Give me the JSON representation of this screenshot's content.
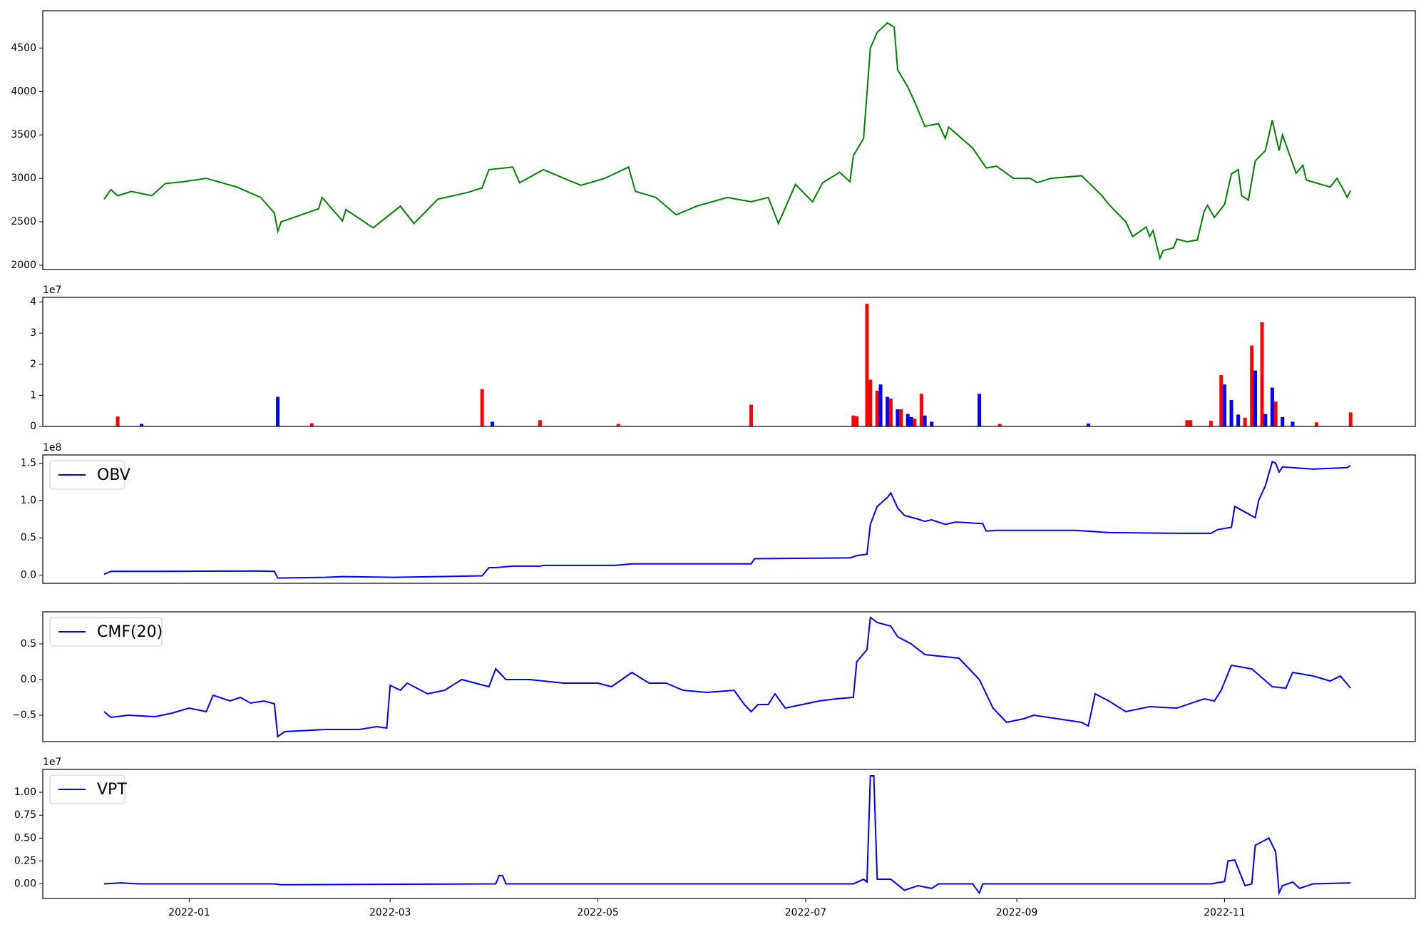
{
  "chart_data": [
    {
      "type": "line",
      "x": [
        -25,
        -23,
        -21,
        -17,
        -11,
        -7,
        -2,
        5,
        14,
        21,
        25,
        26,
        27,
        38,
        39,
        45,
        46,
        54,
        62,
        66,
        73,
        82,
        86,
        88,
        95,
        97,
        104,
        110,
        115,
        122,
        129,
        131,
        137,
        143,
        149,
        158,
        165,
        170,
        173,
        178,
        183,
        186,
        191,
        194,
        195,
        198,
        200,
        202,
        205,
        207,
        208,
        211,
        213,
        216,
        220,
        222,
        223,
        230,
        234,
        237,
        242,
        247,
        249,
        253,
        262,
        268,
        270,
        275,
        277,
        281,
        282,
        283,
        285,
        286,
        289,
        290,
        293,
        296,
        298,
        299,
        301,
        304,
        306,
        308,
        309,
        311,
        313,
        316,
        318,
        320,
        321,
        325,
        327,
        328,
        335,
        337,
        339,
        340,
        341
      ],
      "series": [
        {
          "color": "#008000",
          "values": [
            2760,
            2870,
            2800,
            2850,
            2800,
            2940,
            2960,
            3000,
            2900,
            2780,
            2600,
            2390,
            2500,
            2650,
            2780,
            2510,
            2640,
            2430,
            2680,
            2480,
            2760,
            2840,
            2890,
            3100,
            3130,
            2950,
            3100,
            3000,
            2920,
            3000,
            3130,
            2850,
            2780,
            2580,
            2680,
            2780,
            2730,
            2780,
            2480,
            2930,
            2730,
            2950,
            3070,
            2960,
            3260,
            3460,
            4500,
            4680,
            4790,
            4740,
            4250,
            4050,
            3880,
            3600,
            3630,
            3460,
            3590,
            3350,
            3120,
            3140,
            3000,
            3000,
            2950,
            3000,
            3030,
            2800,
            2700,
            2500,
            2330,
            2440,
            2330,
            2400,
            2080,
            2170,
            2200,
            2300,
            2270,
            2290,
            2620,
            2690,
            2550,
            2700,
            3050,
            3100,
            2800,
            2750,
            3200,
            3320,
            3670,
            3320,
            3500,
            3060,
            3150,
            2980,
            2900,
            3000,
            2860,
            2780,
            2860
          ]
        }
      ],
      "xlim": [
        -43,
        360
      ],
      "ylim": [
        1950,
        4930
      ],
      "yticks": [
        2000,
        2500,
        3000,
        3500,
        4000,
        4500
      ]
    },
    {
      "type": "bar",
      "offset_label": "1e7",
      "x": [
        -21,
        -14,
        26,
        36,
        86,
        89,
        103,
        126,
        165,
        195,
        196,
        199,
        200,
        202,
        203,
        205,
        206,
        208,
        209,
        211,
        212,
        213,
        215,
        216,
        218,
        232,
        238,
        264,
        293,
        294,
        300,
        303,
        304,
        306,
        308,
        310,
        312,
        313,
        315,
        316,
        318,
        319,
        321,
        324,
        331,
        341
      ],
      "series": [
        {
          "colors": [
            "#ff0000",
            "#0000ff",
            "#0000ff",
            "#ff0000",
            "#ff0000",
            "#0000ff",
            "#ff0000",
            "#ff0000",
            "#ff0000",
            "#ff0000",
            "#ff0000",
            "#ff0000",
            "#ff0000",
            "#ff0000",
            "#0000ff",
            "#0000ff",
            "#ff0000",
            "#0000ff",
            "#ff0000",
            "#0000ff",
            "#0000ff",
            "#ff0000",
            "#ff0000",
            "#0000ff",
            "#0000ff",
            "#0000ff",
            "#ff0000",
            "#0000ff",
            "#ff0000",
            "#ff0000",
            "#ff0000",
            "#ff0000",
            "#0000ff",
            "#0000ff",
            "#0000ff",
            "#ff0000",
            "#ff0000",
            "#0000ff",
            "#ff0000",
            "#0000ff",
            "#0000ff",
            "#ff0000",
            "#0000ff",
            "#0000ff",
            "#ff0000",
            "#ff0000"
          ],
          "values": [
            3200000,
            800000,
            9500000,
            1000000,
            12000000,
            1500000,
            2000000,
            800000,
            7000000,
            3500000,
            3300000,
            39400000,
            15000000,
            11500000,
            13500000,
            9500000,
            9000000,
            5500000,
            5500000,
            4000000,
            3000000,
            2500000,
            10500000,
            3500000,
            1500000,
            10500000,
            800000,
            900000,
            2000000,
            2000000,
            1800000,
            16500000,
            13500000,
            8500000,
            3800000,
            2800000,
            26000000,
            18000000,
            33500000,
            4000000,
            12500000,
            8000000,
            3000000,
            1500000,
            1300000,
            4500000
          ]
        }
      ],
      "xlim": [
        -43,
        360
      ],
      "ylim": [
        0,
        41500000
      ],
      "yticks": [
        {
          "value": 0,
          "label": "0"
        },
        {
          "value": 10000000,
          "label": "1"
        },
        {
          "value": 20000000,
          "label": "2"
        },
        {
          "value": 30000000,
          "label": "3"
        },
        {
          "value": 40000000,
          "label": "4"
        }
      ]
    },
    {
      "type": "line",
      "offset_label": "1e8",
      "legend": "upper left",
      "x": [
        -25,
        -23,
        -10,
        20,
        25,
        26,
        40,
        45,
        60,
        86,
        88,
        90,
        95,
        103,
        104,
        125,
        130,
        165,
        166,
        194,
        196,
        199,
        200,
        202,
        205,
        206,
        208,
        210,
        214,
        216,
        218,
        222,
        225,
        233,
        234,
        237,
        260,
        270,
        290,
        300,
        302,
        306,
        307,
        313,
        314,
        316,
        318,
        319,
        320,
        321,
        330,
        340,
        341
      ],
      "series": [
        {
          "name": "OBV",
          "color": "#0000ff",
          "values": [
            1000000,
            5000000,
            5000000,
            5500000,
            5000000,
            -4000000,
            -3000000,
            -2000000,
            -3000000,
            -1000000,
            10000000,
            10000000,
            12000000,
            12000000,
            13000000,
            13000000,
            15000000,
            15000000,
            22000000,
            23000000,
            26000000,
            28000000,
            68000000,
            92000000,
            104000000,
            110000000,
            90000000,
            80000000,
            75000000,
            72000000,
            74000000,
            68000000,
            71000000,
            69000000,
            59000000,
            60000000,
            60000000,
            57000000,
            56000000,
            56000000,
            61000000,
            64000000,
            92000000,
            77000000,
            100000000,
            120000000,
            152000000,
            150000000,
            138000000,
            145000000,
            142000000,
            144000000,
            147000000
          ]
        }
      ],
      "xlim": [
        -43,
        360
      ],
      "ylim": [
        -11000000,
        161000000
      ],
      "yticks": [
        {
          "value": 0,
          "label": "0.0"
        },
        {
          "value": 50000000,
          "label": "0.5"
        },
        {
          "value": 100000000,
          "label": "1.0"
        },
        {
          "value": 150000000,
          "label": "1.5"
        }
      ]
    },
    {
      "type": "line",
      "legend": "upper left",
      "x": [
        -25,
        -23,
        -18,
        -10,
        -5,
        0,
        5,
        7,
        12,
        15,
        18,
        22,
        25,
        26,
        28,
        40,
        50,
        55,
        58,
        59,
        62,
        64,
        70,
        75,
        80,
        88,
        90,
        93,
        100,
        110,
        120,
        124,
        130,
        135,
        140,
        145,
        152,
        160,
        163,
        165,
        167,
        170,
        172,
        175,
        180,
        185,
        190,
        195,
        196,
        199,
        200,
        202,
        206,
        208,
        212,
        216,
        226,
        230,
        232,
        236,
        240,
        245,
        248,
        255,
        262,
        264,
        266,
        270,
        275,
        282,
        290,
        298,
        301,
        303,
        306,
        312,
        318,
        322,
        324,
        330,
        335,
        338,
        341
      ],
      "series": [
        {
          "name": "CMF(20)",
          "color": "#0000ff",
          "values": [
            -0.45,
            -0.53,
            -0.5,
            -0.52,
            -0.47,
            -0.4,
            -0.45,
            -0.22,
            -0.3,
            -0.25,
            -0.33,
            -0.3,
            -0.34,
            -0.8,
            -0.73,
            -0.7,
            -0.7,
            -0.66,
            -0.68,
            -0.08,
            -0.15,
            -0.05,
            -0.2,
            -0.15,
            0,
            -0.1,
            0.15,
            0,
            0,
            -0.05,
            -0.05,
            -0.1,
            0.1,
            -0.05,
            -0.05,
            -0.15,
            -0.18,
            -0.15,
            -0.35,
            -0.45,
            -0.35,
            -0.35,
            -0.2,
            -0.4,
            -0.35,
            -0.3,
            -0.27,
            -0.25,
            0.25,
            0.42,
            0.87,
            0.8,
            0.75,
            0.6,
            0.5,
            0.35,
            0.3,
            0.1,
            0,
            -0.4,
            -0.6,
            -0.55,
            -0.5,
            -0.55,
            -0.6,
            -0.65,
            -0.2,
            -0.3,
            -0.45,
            -0.38,
            -0.4,
            -0.27,
            -0.3,
            -0.15,
            0.2,
            0.15,
            -0.1,
            -0.12,
            0.1,
            0.05,
            -0.02,
            0.05,
            -0.12
          ]
        }
      ],
      "xlim": [
        -43,
        360
      ],
      "ylim": [
        -0.87,
        0.95
      ],
      "yticks": [
        {
          "value": -0.5,
          "label": "−0.5"
        },
        {
          "value": 0,
          "label": "0.0"
        },
        0.5
      ]
    },
    {
      "type": "line",
      "offset_label": "1e7",
      "legend": "upper left",
      "x": [
        -25,
        -20,
        -15,
        25,
        27,
        90,
        91,
        92,
        93,
        195,
        198,
        199,
        200,
        201,
        202,
        206,
        210,
        214,
        218,
        220,
        230,
        232,
        233,
        300,
        304,
        305,
        307,
        310,
        312,
        313,
        317,
        319,
        320,
        321,
        324,
        326,
        330,
        341
      ],
      "series": [
        {
          "name": "VPT",
          "color": "#0000ff",
          "values": [
            0,
            100000,
            0,
            0,
            -100000,
            0,
            900000,
            900000,
            0,
            0,
            500000,
            200000,
            11800000,
            11800000,
            500000,
            500000,
            -700000,
            -200000,
            -500000,
            0,
            0,
            -1000000,
            0,
            0,
            250000,
            2500000,
            2600000,
            -200000,
            0,
            4200000,
            5000000,
            3500000,
            -1000000,
            -200000,
            200000,
            -500000,
            0,
            100000
          ]
        }
      ],
      "xlim": [
        -43,
        360
      ],
      "ylim": [
        -1600000,
        12500000
      ],
      "yticks": [
        {
          "value": 0,
          "label": "0.00"
        },
        {
          "value": 2500000,
          "label": "0.25"
        },
        {
          "value": 5000000,
          "label": "0.50"
        },
        {
          "value": 7500000,
          "label": "0.75"
        },
        {
          "value": 10000000,
          "label": "1.00"
        }
      ],
      "xticks": [
        {
          "value": 0,
          "label": "2022-01"
        },
        {
          "value": 59,
          "label": "2022-03"
        },
        {
          "value": 120,
          "label": "2022-05"
        },
        {
          "value": 181,
          "label": "2022-07"
        },
        {
          "value": 243,
          "label": "2022-09"
        },
        {
          "value": 304,
          "label": "2022-11"
        }
      ]
    }
  ]
}
